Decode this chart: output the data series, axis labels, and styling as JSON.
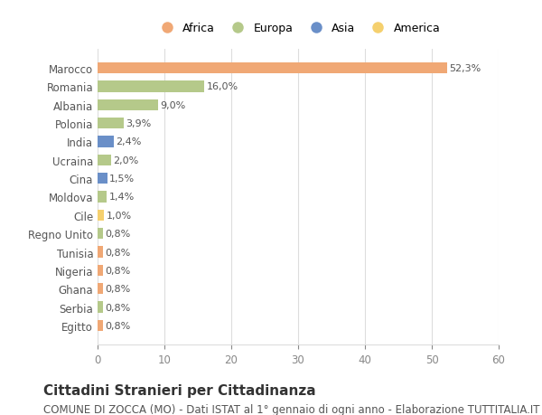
{
  "categories": [
    "Egitto",
    "Serbia",
    "Ghana",
    "Nigeria",
    "Tunisia",
    "Regno Unito",
    "Cile",
    "Moldova",
    "Cina",
    "Ucraina",
    "India",
    "Polonia",
    "Albania",
    "Romania",
    "Marocco"
  ],
  "values": [
    0.8,
    0.8,
    0.8,
    0.8,
    0.8,
    0.8,
    1.0,
    1.4,
    1.5,
    2.0,
    2.4,
    3.9,
    9.0,
    16.0,
    52.3
  ],
  "labels": [
    "0,8%",
    "0,8%",
    "0,8%",
    "0,8%",
    "0,8%",
    "0,8%",
    "1,0%",
    "1,4%",
    "1,5%",
    "2,0%",
    "2,4%",
    "3,9%",
    "9,0%",
    "16,0%",
    "52,3%"
  ],
  "continents": [
    "Africa",
    "Europa",
    "Africa",
    "Africa",
    "Africa",
    "Europa",
    "America",
    "Europa",
    "Asia",
    "Europa",
    "Asia",
    "Europa",
    "Europa",
    "Europa",
    "Africa"
  ],
  "colors": {
    "Africa": "#F0A875",
    "Europa": "#B5C98A",
    "Asia": "#6A8FC8",
    "America": "#F5D06E"
  },
  "legend_order": [
    "Africa",
    "Europa",
    "Asia",
    "America"
  ],
  "legend_colors": [
    "#F0A875",
    "#B5C98A",
    "#6A8FC8",
    "#F5D06E"
  ],
  "title": "Cittadini Stranieri per Cittadinanza",
  "subtitle": "COMUNE DI ZOCCA (MO) - Dati ISTAT al 1° gennaio di ogni anno - Elaborazione TUTTITALIA.IT",
  "xlim": [
    0,
    60
  ],
  "xticks": [
    0,
    10,
    20,
    30,
    40,
    50,
    60
  ],
  "bg_color": "#ffffff",
  "grid_color": "#dddddd",
  "bar_height": 0.6,
  "label_fontsize": 8,
  "tick_fontsize": 8.5,
  "title_fontsize": 11,
  "subtitle_fontsize": 8.5
}
